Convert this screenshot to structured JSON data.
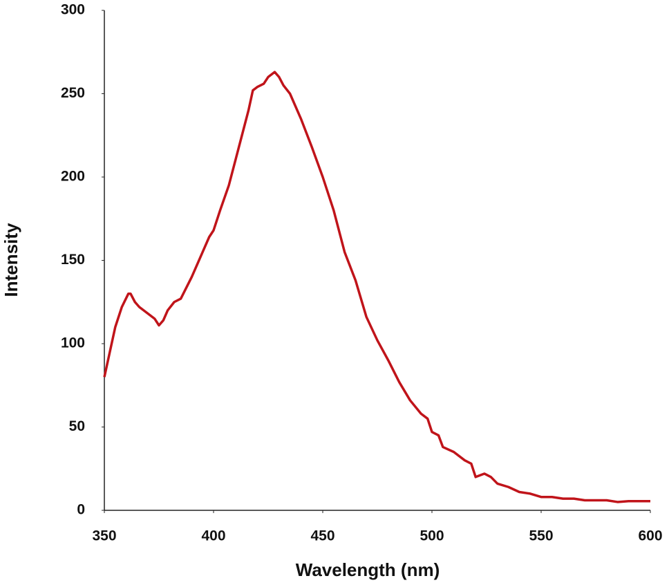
{
  "chart_data": {
    "type": "line",
    "x_label": "Wavelength (nm)",
    "y_label": "Intensity",
    "xlim": [
      350,
      600
    ],
    "xticks": [
      350,
      400,
      450,
      500,
      550,
      600
    ],
    "ylim": [
      0,
      300
    ],
    "yticks": [
      0,
      50,
      100,
      150,
      200,
      250,
      300
    ],
    "grid": false,
    "series": [
      {
        "color": "#c0141a",
        "x": [
          350,
          355,
          358,
          361,
          362,
          364,
          366,
          370,
          373,
          375,
          377,
          379,
          382,
          385,
          390,
          395,
          398,
          400,
          403,
          407,
          410,
          413,
          416,
          418,
          420,
          423,
          425,
          428,
          430,
          432,
          435,
          440,
          445,
          450,
          455,
          460,
          465,
          470,
          475,
          480,
          485,
          490,
          495,
          498,
          500,
          503,
          505,
          510,
          515,
          518,
          520,
          522,
          524,
          527,
          530,
          535,
          540,
          545,
          550,
          555,
          560,
          565,
          570,
          575,
          580,
          585,
          590,
          595,
          600
        ],
        "values": [
          80,
          110,
          122,
          130,
          130,
          125,
          122,
          118,
          115,
          111,
          114,
          120,
          125,
          127,
          140,
          155,
          164,
          168,
          180,
          195,
          210,
          225,
          240,
          252,
          254,
          256,
          260,
          263,
          260,
          255,
          250,
          235,
          218,
          200,
          180,
          155,
          138,
          116,
          102,
          90,
          77,
          66,
          58,
          55,
          47,
          45,
          38,
          35,
          30,
          28,
          20,
          21,
          22,
          20,
          16,
          14,
          11,
          10,
          8,
          8,
          7,
          7,
          6,
          6,
          6,
          5,
          5.5,
          5.5,
          5.5
        ]
      }
    ]
  }
}
